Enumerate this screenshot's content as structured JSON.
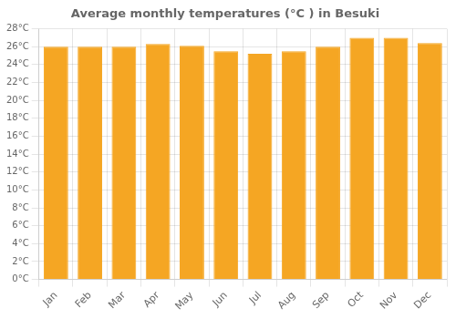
{
  "chart_data": {
    "type": "bar",
    "title": "Average monthly temperatures (°C ) in Besuki",
    "categories": [
      "Jan",
      "Feb",
      "Mar",
      "Apr",
      "May",
      "Jun",
      "Jul",
      "Aug",
      "Sep",
      "Oct",
      "Nov",
      "Dec"
    ],
    "values": [
      26.0,
      26.0,
      26.0,
      26.3,
      26.1,
      25.5,
      25.2,
      25.5,
      26.0,
      27.0,
      27.0,
      26.4
    ],
    "color": "#F5A623",
    "ylim": [
      0,
      28
    ],
    "yticks": [
      {
        "value": 0,
        "label": "0°C"
      },
      {
        "value": 2,
        "label": "2°C"
      },
      {
        "value": 4,
        "label": "4°C"
      },
      {
        "value": 6,
        "label": "6°C"
      },
      {
        "value": 8,
        "label": "8°C"
      },
      {
        "value": 10,
        "label": "10°C"
      },
      {
        "value": 12,
        "label": "12°C"
      },
      {
        "value": 14,
        "label": "14°C"
      },
      {
        "value": 16,
        "label": "16°C"
      },
      {
        "value": 18,
        "label": "18°C"
      },
      {
        "value": 20,
        "label": "20°C"
      },
      {
        "value": 22,
        "label": "22°C"
      },
      {
        "value": 24,
        "label": "24°C"
      },
      {
        "value": 26,
        "label": "26°C"
      },
      {
        "value": 28,
        "label": "28°C"
      }
    ],
    "grid": true
  }
}
